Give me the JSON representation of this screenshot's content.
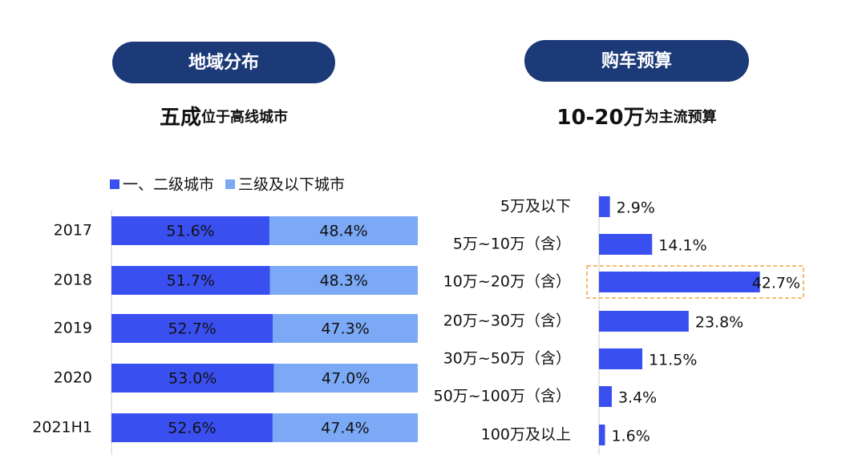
{
  "chart_data": [
    {
      "type": "bar",
      "orientation": "horizontal",
      "stacked": true,
      "title": "地域分布",
      "subtitle_lead": "五成",
      "subtitle": "位于高线城市",
      "categories": [
        "2017",
        "2018",
        "2019",
        "2020",
        "2021H1"
      ],
      "series": [
        {
          "name": "一、二级城市",
          "color": "#3a4ff0",
          "values": [
            51.6,
            51.7,
            52.7,
            53.0,
            52.6
          ],
          "value_labels": [
            "51.6%",
            "51.7%",
            "52.7%",
            "53.0%",
            "52.6%"
          ]
        },
        {
          "name": "三级及以下城市",
          "color": "#7ba9f6",
          "values": [
            48.4,
            48.3,
            47.3,
            47.0,
            47.4
          ],
          "value_labels": [
            "48.4%",
            "48.3%",
            "47.3%",
            "47.0%",
            "47.4%"
          ]
        }
      ]
    },
    {
      "type": "bar",
      "orientation": "horizontal",
      "title": "购车预算",
      "subtitle_lead": "10-20万",
      "subtitle": "为主流预算",
      "categories": [
        "5万及以下",
        "5万~10万（含）",
        "10万~20万（含）",
        "20万~30万（含）",
        "30万~50万（含）",
        "50万~100万（含）",
        "100万及以上"
      ],
      "values": [
        2.9,
        14.1,
        42.7,
        23.8,
        11.5,
        3.4,
        1.6
      ],
      "value_labels": [
        "2.9%",
        "14.1%",
        "42.7%",
        "23.8%",
        "11.5%",
        "3.4%",
        "1.6%"
      ],
      "color": "#3a4ff0",
      "highlight_color": "#f0a540",
      "highlight_index": 2
    }
  ]
}
